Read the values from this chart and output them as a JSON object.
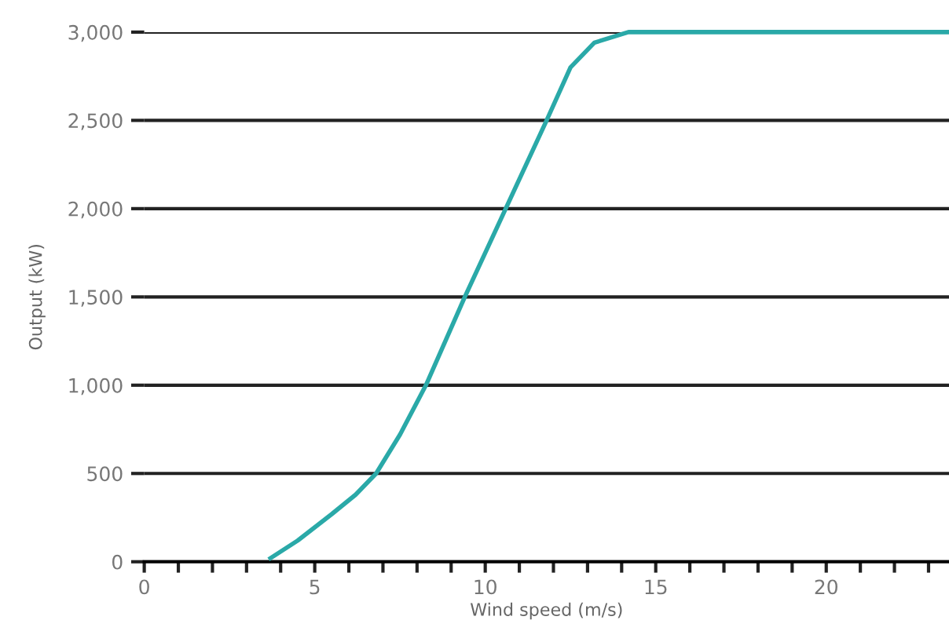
{
  "chart_data": {
    "type": "line",
    "xlabel": "Wind speed (m/s)",
    "ylabel": "Output (kW)",
    "x": [
      3.7,
      4.5,
      5.5,
      6.2,
      6.8,
      7.5,
      8.26,
      9.4,
      10.6,
      11.8,
      12.5,
      13.2,
      14.2,
      23.6
    ],
    "series": [
      {
        "color": "#2aa9a8",
        "values": [
          20,
          120,
          270,
          380,
          500,
          720,
          1000,
          1500,
          2000,
          2500,
          2800,
          2940,
          3000,
          3000
        ]
      }
    ],
    "xlim": [
      0,
      23.6
    ],
    "xticks": [
      0,
      {
        "value": 1,
        "label": null
      },
      {
        "value": 2,
        "label": null
      },
      {
        "value": 3,
        "label": null
      },
      {
        "value": 4,
        "label": null
      },
      5,
      {
        "value": 6,
        "label": null
      },
      {
        "value": 7,
        "label": null
      },
      {
        "value": 8,
        "label": null
      },
      {
        "value": 9,
        "label": null
      },
      10,
      {
        "value": 11,
        "label": null
      },
      {
        "value": 12,
        "label": null
      },
      {
        "value": 13,
        "label": null
      },
      {
        "value": 14,
        "label": null
      },
      15,
      {
        "value": 16,
        "label": null
      },
      {
        "value": 17,
        "label": null
      },
      {
        "value": 18,
        "label": null
      },
      {
        "value": 19,
        "label": null
      },
      20,
      {
        "value": 21,
        "label": null
      },
      {
        "value": 22,
        "label": null
      },
      {
        "value": 23,
        "label": null
      }
    ],
    "ylim": [
      0,
      3000
    ],
    "yticks": [
      0,
      500,
      {
        "value": 1000,
        "label": "1,000"
      },
      {
        "value": 1500,
        "label": "1,500"
      },
      {
        "value": 2000,
        "label": "2,000"
      },
      {
        "value": 2500,
        "label": "2,500"
      },
      {
        "value": 3000,
        "label": "3,000"
      }
    ],
    "grid": "y",
    "marker": "none",
    "line_style": "solid",
    "legend": false
  }
}
